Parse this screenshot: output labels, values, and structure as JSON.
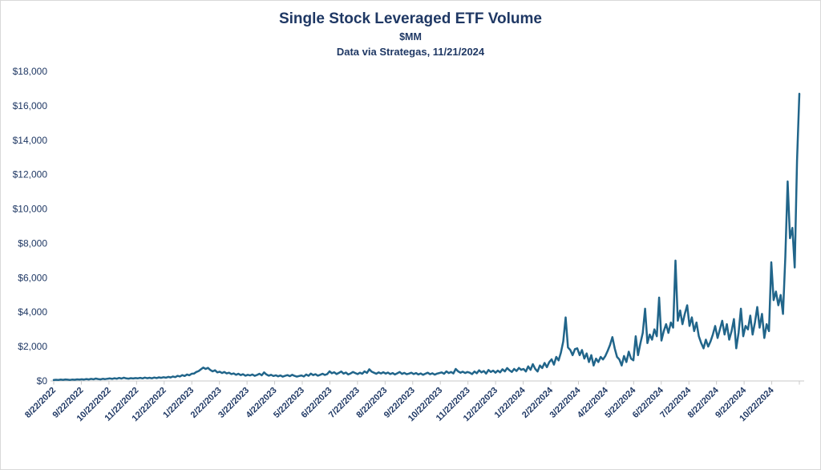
{
  "chart": {
    "title": "Single Stock Leveraged ETF Volume",
    "subtitle": "$MM",
    "source": "Data via Strategas, 11/21/2024"
  },
  "colors": {
    "text_navy": "#1f3864",
    "line": "#21658a",
    "axis": "#c8c8c8",
    "canvas_border": "#d9d9d9"
  },
  "chart_data": {
    "type": "line",
    "title": "Single Stock Leveraged ETF Volume",
    "subtitle": "$MM",
    "source": "Data via Strategas, 11/21/2024",
    "xlabel": "",
    "ylabel": "",
    "grid": false,
    "legend_position": "none",
    "ylim": [
      0,
      18000
    ],
    "y_ticks": [
      0,
      2000,
      4000,
      6000,
      8000,
      10000,
      12000,
      14000,
      16000,
      18000
    ],
    "y_tick_labels": [
      "$0",
      "$2,000",
      "$4,000",
      "$6,000",
      "$8,000",
      "$10,000",
      "$12,000",
      "$14,000",
      "$16,000",
      "$18,000"
    ],
    "x_tick_labels": [
      "8/22/2022",
      "9/22/2022",
      "10/22/2022",
      "11/22/2022",
      "12/22/2022",
      "1/22/2023",
      "2/22/2023",
      "3/22/2023",
      "4/22/2023",
      "5/22/2023",
      "6/22/2023",
      "7/22/2023",
      "8/22/2023",
      "9/22/2023",
      "10/22/2023",
      "11/22/2023",
      "12/22/2023",
      "1/22/2024",
      "2/22/2024",
      "3/22/2024",
      "4/22/2024",
      "5/22/2024",
      "6/22/2024",
      "7/22/2024",
      "8/22/2024",
      "9/22/2024",
      "10/22/2024"
    ],
    "x_start": "8/22/2022",
    "x_end": "11/21/2024",
    "series": [
      {
        "name": "Single Stock Leveraged ETF Volume ($MM)",
        "values": [
          55,
          70,
          60,
          80,
          65,
          90,
          75,
          60,
          85,
          70,
          95,
          80,
          100,
          85,
          110,
          90,
          120,
          100,
          140,
          110,
          95,
          125,
          105,
          130,
          150,
          120,
          160,
          130,
          175,
          140,
          190,
          150,
          135,
          165,
          145,
          170,
          155,
          180,
          150,
          195,
          160,
          185,
          155,
          200,
          170,
          210,
          180,
          220,
          190,
          240,
          205,
          260,
          225,
          300,
          260,
          340,
          290,
          380,
          330,
          420,
          430,
          520,
          580,
          680,
          780,
          700,
          760,
          640,
          560,
          620,
          500,
          540,
          460,
          520,
          440,
          480,
          400,
          440,
          360,
          420,
          340,
          390,
          310,
          360,
          320,
          380,
          300,
          350,
          420,
          330,
          500,
          380,
          310,
          360,
          290,
          330,
          270,
          320,
          250,
          300,
          340,
          280,
          360,
          300,
          250,
          290,
          320,
          260,
          380,
          300,
          430,
          340,
          390,
          310,
          360,
          420,
          350,
          400,
          560,
          450,
          510,
          400,
          470,
          550,
          430,
          490,
          380,
          440,
          520,
          460,
          400,
          480,
          420,
          560,
          470,
          680,
          540,
          480,
          420,
          500,
          440,
          510,
          430,
          490,
          400,
          460,
          380,
          450,
          520,
          410,
          470,
          390,
          430,
          480,
          400,
          460,
          380,
          440,
          360,
          420,
          480,
          390,
          450,
          370,
          430,
          460,
          500,
          420,
          560,
          460,
          520,
          440,
          700,
          560,
          480,
          540,
          460,
          520,
          480,
          400,
          550,
          450,
          620,
          500,
          580,
          430,
          640,
          520,
          600,
          480,
          600,
          500,
          680,
          560,
          750,
          620,
          520,
          700,
          580,
          760,
          650,
          700,
          550,
          850,
          650,
          980,
          700,
          550,
          900,
          750,
          1050,
          800,
          1100,
          1260,
          950,
          1400,
          1200,
          1650,
          2300,
          3700,
          1950,
          1800,
          1500,
          1850,
          1900,
          1500,
          1800,
          1300,
          1600,
          1100,
          1500,
          900,
          1300,
          1100,
          1400,
          1250,
          1450,
          1750,
          2100,
          2550,
          1900,
          1400,
          1250,
          900,
          1450,
          1100,
          1700,
          1300,
          1200,
          2600,
          1500,
          2200,
          2800,
          4200,
          2200,
          2700,
          2400,
          3000,
          2600,
          4850,
          2350,
          2900,
          3300,
          2800,
          3400,
          3100,
          7000,
          3500,
          4100,
          3300,
          3900,
          4400,
          3200,
          3700,
          2900,
          3400,
          2600,
          2200,
          1900,
          2400,
          2000,
          2300,
          2700,
          3200,
          2500,
          3000,
          3500,
          2700,
          3300,
          2400,
          2900,
          3600,
          1900,
          2800,
          4200,
          2600,
          3200,
          3000,
          3800,
          2700,
          3400,
          4300,
          3100,
          3900,
          2500,
          3300,
          2900,
          6900,
          4700,
          5200,
          4400,
          5000,
          3900,
          7200,
          11600,
          8300,
          8900,
          6600,
          12800,
          16700
        ]
      }
    ]
  }
}
